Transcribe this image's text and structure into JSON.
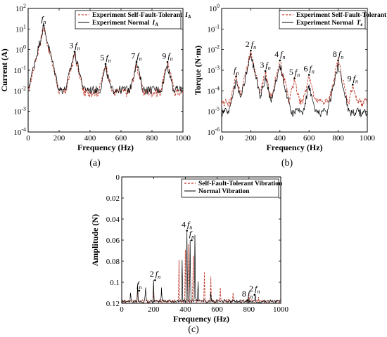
{
  "colors": {
    "experiment_normal": "#000000",
    "self_fault_tolerant": "#c0392b",
    "legend_border": "#000000"
  },
  "chart_data": [
    {
      "id": "a",
      "type": "line",
      "panel_label": "(a)",
      "xlabel": "Frequency (Hz)",
      "ylabel": "Current (A)",
      "xlim": [
        0,
        1000
      ],
      "ylim": [
        0.0001,
        100
      ],
      "yscale": "log",
      "x_ticks": [
        "0",
        "200",
        "400",
        "600",
        "800",
        "1000"
      ],
      "y_ticks": [
        {
          "base": "10",
          "exp": "2"
        },
        {
          "base": "10",
          "exp": "1"
        },
        {
          "base": "10",
          "exp": "0"
        },
        {
          "base": "10",
          "exp": "-1"
        },
        {
          "base": "10",
          "exp": "-2"
        },
        {
          "base": "10",
          "exp": "-3"
        },
        {
          "base": "10",
          "exp": "-4"
        }
      ],
      "legend_position": "top-right",
      "series": [
        {
          "name": "Experiment Self-Fault-Tolerant",
          "symbol": "I",
          "sub": "A",
          "style": "dashed",
          "peaks": [
            [
              100,
              12
            ],
            [
              300,
              0.6
            ],
            [
              500,
              0.2
            ],
            [
              700,
              0.2
            ],
            [
              900,
              0.25
            ]
          ],
          "floor": 0.009
        },
        {
          "name": "Experiment Normal",
          "symbol": "I",
          "sub": "A",
          "style": "solid",
          "peaks": [
            [
              100,
              15
            ],
            [
              300,
              0.8
            ],
            [
              500,
              0.15
            ],
            [
              700,
              0.25
            ],
            [
              900,
              0.2
            ]
          ],
          "floor": 0.012
        }
      ],
      "annotations": [
        {
          "coef": "",
          "x": 100,
          "y": 15
        },
        {
          "coef": "3",
          "x": 300,
          "y": 0.8
        },
        {
          "coef": "5",
          "x": 500,
          "y": 0.2
        },
        {
          "coef": "7",
          "x": 700,
          "y": 0.25
        },
        {
          "coef": "9",
          "x": 900,
          "y": 0.25
        }
      ]
    },
    {
      "id": "b",
      "type": "line",
      "panel_label": "(b)",
      "xlabel": "Frequency (Hz)",
      "ylabel": "Torque (N·m)",
      "xlim": [
        0,
        1000
      ],
      "ylim": [
        1e-06,
        1
      ],
      "yscale": "log",
      "x_ticks": [
        "0",
        "200",
        "400",
        "600",
        "800",
        "1000"
      ],
      "y_ticks": [
        {
          "base": "10",
          "exp": "0"
        },
        {
          "base": "10",
          "exp": "-1"
        },
        {
          "base": "10",
          "exp": "-2"
        },
        {
          "base": "10",
          "exp": "-3"
        },
        {
          "base": "10",
          "exp": "-4"
        },
        {
          "base": "10",
          "exp": "-5"
        },
        {
          "base": "10",
          "exp": "-6"
        }
      ],
      "legend_position": "top-right",
      "series": [
        {
          "name": "Experiment Self-Fault-Tolerant",
          "symbol": "T",
          "sub": "e",
          "style": "dashed",
          "peaks": [
            [
              100,
              0.0005
            ],
            [
              200,
              0.008
            ],
            [
              300,
              0.0008
            ],
            [
              400,
              0.003
            ],
            [
              500,
              0.0004
            ],
            [
              600,
              0.0006
            ],
            [
              800,
              0.003
            ],
            [
              900,
              0.0002
            ]
          ],
          "floor": 3e-05
        },
        {
          "name": "Experiment Normal",
          "symbol": "T",
          "sub": "e",
          "style": "solid",
          "peaks": [
            [
              100,
              0.0003
            ],
            [
              200,
              0.006
            ],
            [
              300,
              0.0005
            ],
            [
              400,
              0.002
            ],
            [
              600,
              0.0002
            ],
            [
              800,
              0.002
            ]
          ],
          "floor": 1e-05
        }
      ],
      "annotations": [
        {
          "coef": "",
          "x": 100,
          "y": 0.0005
        },
        {
          "coef": "2",
          "x": 200,
          "y": 0.009
        },
        {
          "coef": "3",
          "x": 300,
          "y": 0.0009
        },
        {
          "coef": "4",
          "x": 400,
          "y": 0.003
        },
        {
          "coef": "5",
          "x": 500,
          "y": 0.0004
        },
        {
          "coef": "6",
          "x": 600,
          "y": 0.0006
        },
        {
          "coef": "8",
          "x": 800,
          "y": 0.003
        },
        {
          "coef": "9",
          "x": 900,
          "y": 0.0002
        }
      ]
    },
    {
      "id": "c",
      "type": "line",
      "panel_label": "(c)",
      "xlabel": "Frequency (Hz)",
      "ylabel": "Amplitude (N)",
      "xlim": [
        0,
        1000
      ],
      "ylim": [
        0,
        0.12
      ],
      "yscale": "linear",
      "x_ticks": [
        "0",
        "200",
        "400",
        "600",
        "800",
        "1000"
      ],
      "y_ticks": [
        {
          "base": "0",
          "exp": ""
        },
        {
          "base": "0.02",
          "exp": ""
        },
        {
          "base": "0.04",
          "exp": ""
        },
        {
          "base": "0.06",
          "exp": ""
        },
        {
          "base": "0.08",
          "exp": ""
        },
        {
          "base": "0.1",
          "exp": ""
        },
        {
          "base": "0.12",
          "exp": ""
        }
      ],
      "legend_position": "top-right",
      "series": [
        {
          "name": "Self-Fault-Tolerant Vibration",
          "style": "dashed",
          "peaks": [
            [
              100,
              0.015
            ],
            [
              200,
              0.012
            ],
            [
              360,
              0.04
            ],
            [
              400,
              0.05
            ],
            [
              420,
              0.055
            ],
            [
              450,
              0.045
            ],
            [
              520,
              0.03
            ],
            [
              560,
              0.025
            ],
            [
              620,
              0.015
            ],
            [
              700,
              0.01
            ],
            [
              800,
              0.008
            ],
            [
              860,
              0.006
            ]
          ],
          "floor": 0.002
        },
        {
          "name": "Normal Vibration",
          "style": "solid",
          "peaks": [
            [
              55,
              0.01
            ],
            [
              100,
              0.018
            ],
            [
              150,
              0.015
            ],
            [
              200,
              0.022
            ],
            [
              250,
              0.015
            ],
            [
              380,
              0.04
            ],
            [
              410,
              0.069
            ],
            [
              430,
              0.06
            ],
            [
              460,
              0.065
            ],
            [
              480,
              0.02
            ],
            [
              560,
              0.01
            ],
            [
              800,
              0.004
            ],
            [
              840,
              0.008
            ]
          ],
          "floor": 0.002
        }
      ],
      "annotations": [
        {
          "coef": "",
          "x": 110,
          "y": 0.012
        },
        {
          "coef": "2",
          "x": 210,
          "y": 0.022
        },
        {
          "coef": "4",
          "x": 410,
          "y": 0.069
        },
        {
          "coef": "",
          "x": 440,
          "y": 0.06
        },
        {
          "coef": "8",
          "x": 790,
          "y": 0.003
        },
        {
          "coef": "2",
          "x": 835,
          "y": 0.008
        }
      ]
    }
  ],
  "annotation_base": "f",
  "annotation_sub": "n"
}
